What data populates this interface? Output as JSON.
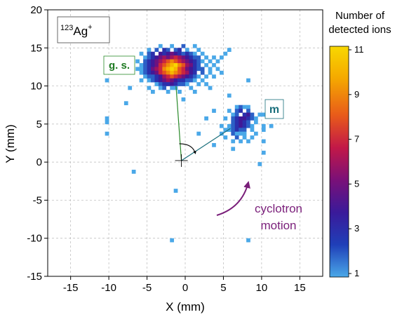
{
  "chart_data": {
    "type": "heatmap",
    "isotope": {
      "mass": "123",
      "element": "Ag",
      "charge": "+"
    },
    "xlabel": "X (mm)",
    "ylabel": "Y (mm)",
    "xlim": [
      -18,
      18
    ],
    "ylim": [
      -15,
      20
    ],
    "xticks": [
      -15,
      -10,
      -5,
      0,
      5,
      10,
      15
    ],
    "yticks": [
      -15,
      -10,
      -5,
      0,
      5,
      10,
      15,
      20
    ],
    "grid": true,
    "bin_size_mm": 0.5,
    "colorbar": {
      "title_lines": [
        "Number of",
        "detected ions"
      ],
      "min": 1,
      "max": 11,
      "ticks": [
        1,
        3,
        5,
        7,
        9,
        11
      ],
      "colormap": [
        "#4aa8e8",
        "#1f3fb8",
        "#3a1a9a",
        "#7a1078",
        "#c21848",
        "#e85a1a",
        "#f5a800",
        "#f8d800"
      ]
    },
    "gs_label": "g. s.",
    "m_label": "m",
    "motion_label_lines": [
      "cyclotron",
      "motion"
    ],
    "label_colors": {
      "gs": "#1e7a22",
      "m": "#1a6f7c",
      "motion": "#7a1f7a"
    },
    "gs_centroid": [
      -1.2,
      12.0
    ],
    "m_centroid": [
      7.2,
      4.6
    ],
    "origin": [
      -0.5,
      0.2
    ],
    "points": [
      [
        -3.5,
        15
      ],
      [
        -2,
        15
      ],
      [
        -0.5,
        15
      ],
      [
        1,
        15
      ],
      [
        -5,
        14.5
      ],
      [
        -4,
        14.5
      ],
      [
        -3,
        14.5
      ],
      [
        -2.5,
        14.5
      ],
      [
        -1.5,
        14.5
      ],
      [
        -1,
        14.5
      ],
      [
        0,
        14.5
      ],
      [
        1.5,
        14.5
      ],
      [
        5.5,
        14.5
      ],
      [
        -6,
        14
      ],
      [
        -5,
        14
      ],
      [
        -4.5,
        14
      ],
      [
        -3.5,
        14
      ],
      [
        -3,
        14
      ],
      [
        -2.5,
        14
      ],
      [
        -2,
        14
      ],
      [
        -1.5,
        14
      ],
      [
        -1,
        14
      ],
      [
        -0.5,
        14
      ],
      [
        0,
        14
      ],
      [
        0.5,
        14
      ],
      [
        1,
        14
      ],
      [
        2,
        14
      ],
      [
        5,
        14
      ],
      [
        -5.5,
        13.5
      ],
      [
        -5,
        13.5
      ],
      [
        -4.5,
        13.5
      ],
      [
        -4,
        13.5
      ],
      [
        -3.5,
        13.5
      ],
      [
        -3,
        13.5
      ],
      [
        -2.5,
        13.5
      ],
      [
        -2,
        13.5
      ],
      [
        -1.5,
        13.5
      ],
      [
        -1,
        13.5
      ],
      [
        -0.5,
        13.5
      ],
      [
        0,
        13.5
      ],
      [
        0.5,
        13.5
      ],
      [
        1,
        13.5
      ],
      [
        1.5,
        13.5
      ],
      [
        2.5,
        13.5
      ],
      [
        3.5,
        13.5
      ],
      [
        4.5,
        13.5
      ],
      [
        -6.5,
        13
      ],
      [
        -5.5,
        13
      ],
      [
        -5,
        13
      ],
      [
        -4.5,
        13
      ],
      [
        -4,
        13
      ],
      [
        -3.5,
        13
      ],
      [
        -3,
        13
      ],
      [
        -2.5,
        13
      ],
      [
        -2,
        13
      ],
      [
        -1.5,
        13
      ],
      [
        -1,
        13
      ],
      [
        -0.5,
        13
      ],
      [
        0,
        13
      ],
      [
        0.5,
        13
      ],
      [
        1,
        13
      ],
      [
        1.5,
        13
      ],
      [
        2,
        13
      ],
      [
        3,
        13
      ],
      [
        4,
        13
      ],
      [
        -6,
        12.5
      ],
      [
        -5.5,
        12.5
      ],
      [
        -5,
        12.5
      ],
      [
        -4.5,
        12.5
      ],
      [
        -4,
        12.5
      ],
      [
        -3.5,
        12.5
      ],
      [
        -3,
        12.5
      ],
      [
        -2.5,
        12.5
      ],
      [
        -2,
        12.5
      ],
      [
        -1.5,
        12.5
      ],
      [
        -1,
        12.5
      ],
      [
        -0.5,
        12.5
      ],
      [
        0,
        12.5
      ],
      [
        0.5,
        12.5
      ],
      [
        1,
        12.5
      ],
      [
        1.5,
        12.5
      ],
      [
        2.5,
        12.5
      ],
      [
        3.5,
        12.5
      ],
      [
        -6.5,
        12
      ],
      [
        -6,
        12
      ],
      [
        -5.5,
        12
      ],
      [
        -5,
        12
      ],
      [
        -4.5,
        12
      ],
      [
        -4,
        12
      ],
      [
        -3.5,
        12
      ],
      [
        -3,
        12
      ],
      [
        -2.5,
        12
      ],
      [
        -2,
        12
      ],
      [
        -1.5,
        12
      ],
      [
        -1,
        12
      ],
      [
        -0.5,
        12
      ],
      [
        0,
        12
      ],
      [
        0.5,
        12
      ],
      [
        1,
        12
      ],
      [
        1.5,
        12
      ],
      [
        2,
        12
      ],
      [
        3,
        12
      ],
      [
        4,
        12
      ],
      [
        -6,
        11.5
      ],
      [
        -5.5,
        11.5
      ],
      [
        -5,
        11.5
      ],
      [
        -4.5,
        11.5
      ],
      [
        -4,
        11.5
      ],
      [
        -3.5,
        11.5
      ],
      [
        -3,
        11.5
      ],
      [
        -2.5,
        11.5
      ],
      [
        -2,
        11.5
      ],
      [
        -1.5,
        11.5
      ],
      [
        -1,
        11.5
      ],
      [
        -0.5,
        11.5
      ],
      [
        0,
        11.5
      ],
      [
        0.5,
        11.5
      ],
      [
        1,
        11.5
      ],
      [
        2,
        11.5
      ],
      [
        3,
        11.5
      ],
      [
        4.5,
        11.5
      ],
      [
        -5.5,
        11
      ],
      [
        -5,
        11
      ],
      [
        -4.5,
        11
      ],
      [
        -4,
        11
      ],
      [
        -3.5,
        11
      ],
      [
        -3,
        11
      ],
      [
        -2.5,
        11
      ],
      [
        -2,
        11
      ],
      [
        -1.5,
        11
      ],
      [
        -1,
        11
      ],
      [
        -0.5,
        11
      ],
      [
        0,
        11
      ],
      [
        0.5,
        11
      ],
      [
        1,
        11
      ],
      [
        1.5,
        11
      ],
      [
        2.5,
        11
      ],
      [
        3.5,
        11
      ],
      [
        -10.5,
        10.5
      ],
      [
        -6,
        10.5
      ],
      [
        -5,
        10.5
      ],
      [
        -4.5,
        10.5
      ],
      [
        -4,
        10.5
      ],
      [
        -3.5,
        10.5
      ],
      [
        -3,
        10.5
      ],
      [
        -2.5,
        10.5
      ],
      [
        -2,
        10.5
      ],
      [
        -1.5,
        10.5
      ],
      [
        -1,
        10.5
      ],
      [
        -0.5,
        10.5
      ],
      [
        0,
        10.5
      ],
      [
        0.5,
        10.5
      ],
      [
        1,
        10.5
      ],
      [
        2,
        10.5
      ],
      [
        8,
        10.5
      ],
      [
        -4,
        10
      ],
      [
        -3.5,
        10
      ],
      [
        -3,
        10
      ],
      [
        -2.5,
        10
      ],
      [
        -2,
        10
      ],
      [
        -1.5,
        10
      ],
      [
        -1,
        10
      ],
      [
        -0.5,
        10
      ],
      [
        0,
        10
      ],
      [
        1.5,
        10
      ],
      [
        2.5,
        10
      ],
      [
        -7.5,
        9.5
      ],
      [
        -5,
        9.5
      ],
      [
        -3.5,
        9.5
      ],
      [
        -3,
        9.5
      ],
      [
        -2,
        9.5
      ],
      [
        -1.5,
        9.5
      ],
      [
        0.5,
        9.5
      ],
      [
        3,
        9.5
      ],
      [
        -4.5,
        9
      ],
      [
        -2.5,
        9
      ],
      [
        -1,
        9
      ],
      [
        1,
        9
      ],
      [
        5.5,
        8.5
      ],
      [
        -0.5,
        8
      ],
      [
        -8,
        7.5
      ],
      [
        3.5,
        6.5
      ],
      [
        6.5,
        7
      ],
      [
        7,
        7
      ],
      [
        7.5,
        7
      ],
      [
        8,
        7
      ],
      [
        5.5,
        6.5
      ],
      [
        6.5,
        6.5
      ],
      [
        7,
        6.5
      ],
      [
        8,
        6.5
      ],
      [
        6,
        6
      ],
      [
        6.5,
        6
      ],
      [
        7.5,
        6
      ],
      [
        8,
        6
      ],
      [
        8.5,
        6
      ],
      [
        9.5,
        6
      ],
      [
        10,
        6
      ],
      [
        2.5,
        5.5
      ],
      [
        5,
        5.5
      ],
      [
        6,
        5.5
      ],
      [
        6.5,
        5.5
      ],
      [
        7,
        5.5
      ],
      [
        7.5,
        5.5
      ],
      [
        8,
        5.5
      ],
      [
        8.5,
        5.5
      ],
      [
        9,
        5.5
      ],
      [
        -10.5,
        5.5
      ],
      [
        6,
        5
      ],
      [
        6.5,
        5
      ],
      [
        7,
        5
      ],
      [
        7.5,
        5
      ],
      [
        8,
        5
      ],
      [
        9,
        5
      ],
      [
        -10.5,
        5
      ],
      [
        4.5,
        4.5
      ],
      [
        5.5,
        4.5
      ],
      [
        6,
        4.5
      ],
      [
        6.5,
        4.5
      ],
      [
        7,
        4.5
      ],
      [
        7.5,
        4.5
      ],
      [
        8,
        4.5
      ],
      [
        8.5,
        4.5
      ],
      [
        10,
        4.5
      ],
      [
        11,
        4.5
      ],
      [
        5,
        4
      ],
      [
        5.5,
        4
      ],
      [
        6,
        4
      ],
      [
        6.5,
        4
      ],
      [
        7,
        4
      ],
      [
        7.5,
        4
      ],
      [
        8.5,
        4
      ],
      [
        10,
        4
      ],
      [
        1.5,
        3.5
      ],
      [
        4.5,
        3.5
      ],
      [
        6,
        3.5
      ],
      [
        6.5,
        3.5
      ],
      [
        7,
        3.5
      ],
      [
        7.5,
        3.5
      ],
      [
        9,
        3.5
      ],
      [
        -10.5,
        3.5
      ],
      [
        5,
        3
      ],
      [
        6.5,
        3
      ],
      [
        7.5,
        3
      ],
      [
        8.5,
        3
      ],
      [
        6,
        2.5
      ],
      [
        7,
        2.5
      ],
      [
        8,
        2.5
      ],
      [
        10,
        2.5
      ],
      [
        3.5,
        2
      ],
      [
        6,
        1.5
      ],
      [
        10,
        1
      ],
      [
        9.5,
        -0.5
      ],
      [
        -7,
        -1.5
      ],
      [
        -1.5,
        -4
      ],
      [
        -2,
        -10.5
      ],
      [
        8,
        -10.5
      ]
    ],
    "counts": [
      1,
      1,
      2,
      1,
      1,
      2,
      3,
      2,
      2,
      3,
      1,
      1,
      1,
      1,
      2,
      3,
      4,
      3,
      4,
      5,
      4,
      3,
      2,
      3,
      2,
      1,
      1,
      1,
      1,
      2,
      3,
      4,
      5,
      6,
      5,
      6,
      7,
      6,
      5,
      4,
      3,
      2,
      2,
      1,
      1,
      1,
      1,
      2,
      3,
      4,
      5,
      6,
      7,
      8,
      9,
      8,
      7,
      6,
      5,
      4,
      3,
      2,
      1,
      1,
      1,
      1,
      2,
      3,
      4,
      5,
      7,
      8,
      9,
      10,
      11,
      9,
      8,
      6,
      5,
      3,
      2,
      1,
      1,
      1,
      1,
      2,
      3,
      5,
      6,
      7,
      9,
      10,
      11,
      10,
      8,
      7,
      5,
      4,
      3,
      2,
      2,
      1,
      1,
      1,
      2,
      3,
      4,
      5,
      7,
      8,
      9,
      10,
      9,
      8,
      7,
      6,
      4,
      3,
      2,
      1,
      1,
      1,
      2,
      2,
      3,
      4,
      6,
      7,
      8,
      7,
      6,
      5,
      4,
      3,
      2,
      1,
      1,
      1,
      1,
      1,
      1,
      2,
      3,
      4,
      5,
      6,
      5,
      4,
      3,
      3,
      2,
      2,
      1,
      1,
      1,
      1,
      2,
      3,
      3,
      4,
      3,
      2,
      2,
      1,
      1,
      1,
      1,
      1,
      1,
      2,
      1,
      1,
      1,
      1,
      1,
      1,
      1,
      1,
      1,
      1,
      1,
      1,
      1,
      2,
      1,
      1,
      1,
      2,
      3,
      2,
      1,
      2,
      3,
      4,
      2,
      1,
      1,
      1,
      1,
      2,
      3,
      4,
      4,
      3,
      2,
      1,
      1,
      2,
      3,
      4,
      3,
      2,
      1,
      1,
      1,
      1,
      2,
      3,
      4,
      3,
      2,
      1,
      1,
      1,
      1,
      1,
      2,
      3,
      2,
      2,
      1,
      1,
      1,
      1,
      2,
      1,
      1,
      1,
      1,
      1,
      1,
      2,
      1,
      1,
      1,
      1,
      1,
      1,
      1,
      1,
      1,
      1,
      1,
      1,
      1,
      1
    ]
  }
}
